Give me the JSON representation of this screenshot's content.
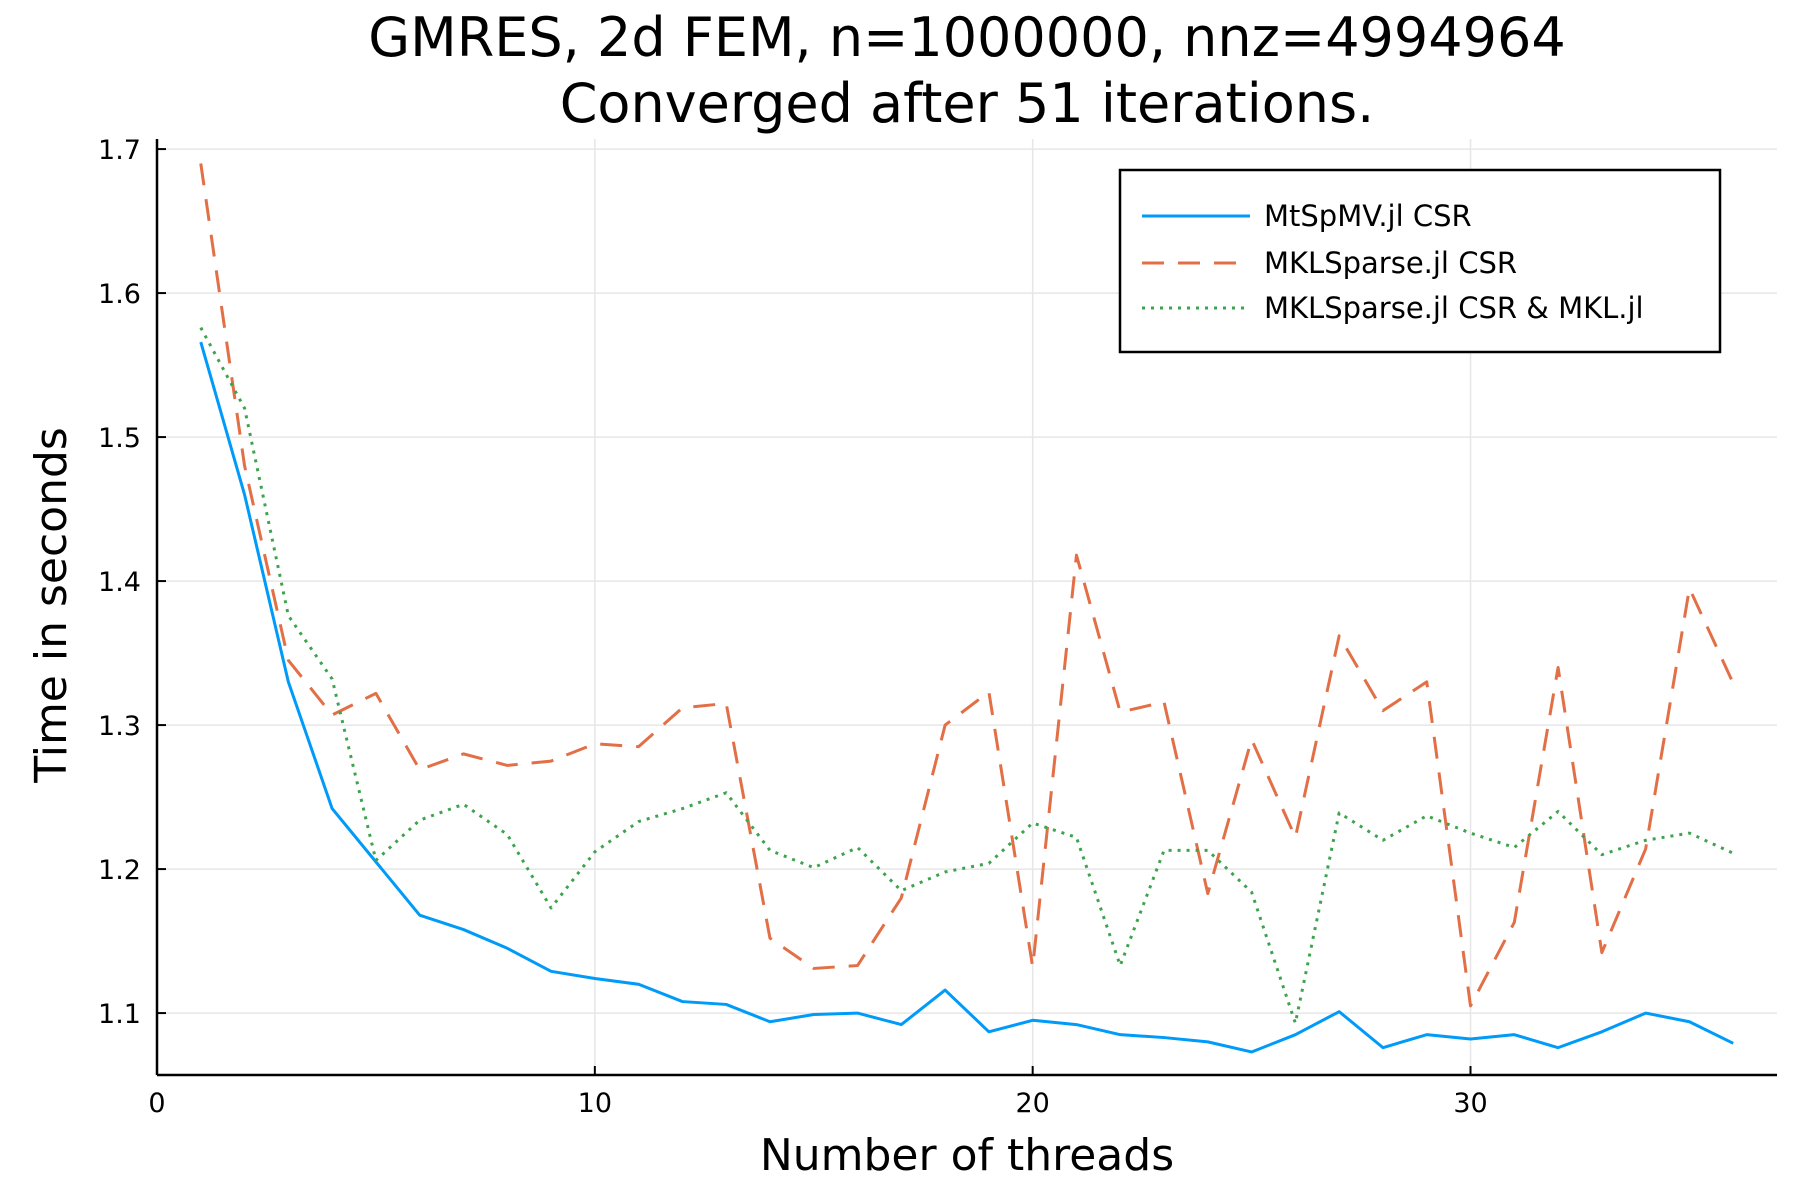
{
  "chart_data": {
    "type": "line",
    "title": "GMRES, 2d FEM, n=1000000, nnz=4994964",
    "subtitle": "Converged after 51 iterations.",
    "xlabel": "Number of threads",
    "ylabel": "Time in seconds",
    "xlim": [
      0,
      37
    ],
    "ylim": [
      1.057,
      1.707
    ],
    "xticks": [
      0,
      10,
      20,
      30
    ],
    "yticks": [
      1.1,
      1.2,
      1.3,
      1.4,
      1.5,
      1.6,
      1.7
    ],
    "grid": true,
    "legend_position": "top-right",
    "x": [
      1,
      2,
      3,
      4,
      5,
      6,
      7,
      8,
      9,
      10,
      11,
      12,
      13,
      14,
      15,
      16,
      17,
      18,
      19,
      20,
      21,
      22,
      23,
      24,
      25,
      26,
      27,
      28,
      29,
      30,
      31,
      32,
      33,
      34,
      35,
      36
    ],
    "series": [
      {
        "name": "MtSpMV.jl CSR",
        "color": "#009af9",
        "style": "solid",
        "values": [
          1.566,
          1.46,
          1.33,
          1.242,
          1.205,
          1.168,
          1.158,
          1.145,
          1.129,
          1.124,
          1.12,
          1.108,
          1.106,
          1.094,
          1.099,
          1.1,
          1.092,
          1.116,
          1.087,
          1.095,
          1.092,
          1.085,
          1.083,
          1.08,
          1.073,
          1.085,
          1.101,
          1.076,
          1.085,
          1.082,
          1.085,
          1.076,
          1.087,
          1.1,
          1.094,
          1.079
        ]
      },
      {
        "name": "MKLSparse.jl CSR",
        "color": "#e26f46",
        "style": "dashed",
        "values": [
          1.69,
          1.48,
          1.345,
          1.307,
          1.322,
          1.269,
          1.28,
          1.272,
          1.275,
          1.287,
          1.285,
          1.312,
          1.315,
          1.152,
          1.131,
          1.133,
          1.18,
          1.3,
          1.323,
          1.132,
          1.418,
          1.309,
          1.316,
          1.183,
          1.29,
          1.222,
          1.362,
          1.31,
          1.33,
          1.105,
          1.163,
          1.34,
          1.142,
          1.214,
          1.395,
          1.329
        ]
      },
      {
        "name": "MKLSparse.jl CSR & MKL.jl",
        "color": "#3da44d",
        "style": "dotted",
        "values": [
          1.576,
          1.52,
          1.376,
          1.332,
          1.206,
          1.234,
          1.245,
          1.224,
          1.173,
          1.212,
          1.233,
          1.242,
          1.253,
          1.213,
          1.201,
          1.215,
          1.185,
          1.198,
          1.204,
          1.232,
          1.222,
          1.133,
          1.213,
          1.213,
          1.184,
          1.093,
          1.239,
          1.22,
          1.237,
          1.225,
          1.215,
          1.24,
          1.21,
          1.22,
          1.225,
          1.211
        ]
      }
    ]
  }
}
